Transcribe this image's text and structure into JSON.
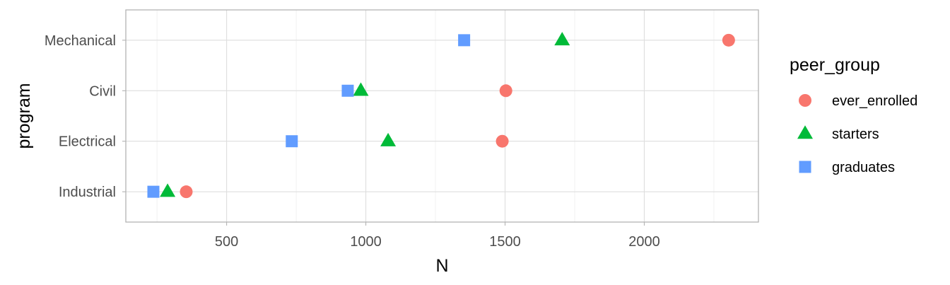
{
  "chart_data": {
    "type": "scatter",
    "xlabel": "N",
    "ylabel": "program",
    "xlim": [
      138,
      2410
    ],
    "x_ticks": [
      500,
      1000,
      1500,
      2000
    ],
    "x_tick_labels": [
      "500",
      "1000",
      "1500",
      "2000"
    ],
    "categories": [
      "Industrial",
      "Electrical",
      "Civil",
      "Mechanical"
    ],
    "grid": true,
    "legend_title": "peer_group",
    "legend_position": "right",
    "series": [
      {
        "name": "ever_enrolled",
        "shape": "circle",
        "color": "#F8766D",
        "values": [
          355,
          1490,
          1503,
          2303
        ]
      },
      {
        "name": "starters",
        "shape": "triangle",
        "color": "#00BA38",
        "values": [
          288,
          1080,
          982,
          1705
        ]
      },
      {
        "name": "graduates",
        "shape": "square",
        "color": "#619CFF",
        "values": [
          237,
          734,
          935,
          1353
        ]
      }
    ]
  }
}
